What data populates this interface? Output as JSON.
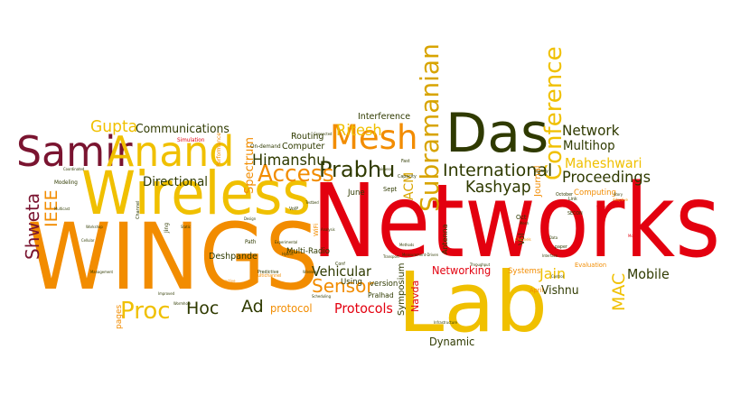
{
  "colors": {
    "red": "#e3000f",
    "orange": "#f28c00",
    "yellow": "#f0c000",
    "gold": "#d8a400",
    "olive": "#6b6b00",
    "darkolive": "#2f3a00",
    "maroon": "#7a1430",
    "brown": "#7b3f00"
  },
  "words": [
    {
      "text": "Networks",
      "color": "red"
    },
    {
      "text": "Lab",
      "color": "yellow"
    },
    {
      "text": "WINGS",
      "color": "orange"
    },
    {
      "text": "Wireless",
      "color": "yellow"
    },
    {
      "text": "Das",
      "color": "darkolive"
    },
    {
      "text": "Samir",
      "color": "maroon"
    },
    {
      "text": "Anand",
      "color": "yellow"
    },
    {
      "text": "Mesh",
      "color": "orange"
    },
    {
      "text": "Prabhu",
      "color": "darkolive"
    },
    {
      "text": "Subramanian",
      "color": "gold"
    },
    {
      "text": "Conference",
      "color": "yellow"
    },
    {
      "text": "International",
      "color": "darkolive"
    },
    {
      "text": "Access",
      "color": "orange"
    },
    {
      "text": "Himanshu",
      "color": "darkolive"
    },
    {
      "text": "Ritesh",
      "color": "yellow"
    },
    {
      "text": "Kashyap",
      "color": "darkolive"
    },
    {
      "text": "Proceedings",
      "color": "darkolive"
    },
    {
      "text": "Maheshwari",
      "color": "yellow"
    },
    {
      "text": "Network",
      "color": "darkolive"
    },
    {
      "text": "Multihop",
      "color": "darkolive"
    },
    {
      "text": "Shweta",
      "color": "maroon"
    },
    {
      "text": "IEEE",
      "color": "orange"
    },
    {
      "text": "Gupta",
      "color": "yellow"
    },
    {
      "text": "Communications",
      "color": "darkolive"
    },
    {
      "text": "Directional",
      "color": "darkolive"
    },
    {
      "text": "Proc",
      "color": "yellow"
    },
    {
      "text": "Hoc",
      "color": "darkolive"
    },
    {
      "text": "Ad",
      "color": "darkolive"
    },
    {
      "text": "Vehicular",
      "color": "darkolive"
    },
    {
      "text": "Sensor",
      "color": "orange"
    },
    {
      "text": "Protocols",
      "color": "red"
    },
    {
      "text": "protocol",
      "color": "orange"
    },
    {
      "text": "Networking",
      "color": "red"
    },
    {
      "text": "Jain",
      "color": "yellow"
    },
    {
      "text": "Vishnu",
      "color": "darkolive"
    },
    {
      "text": "MAC",
      "color": "yellow"
    },
    {
      "text": "Mobile",
      "color": "darkolive"
    },
    {
      "text": "Dynamic",
      "color": "darkolive"
    },
    {
      "text": "Navda",
      "color": "red"
    },
    {
      "text": "Symposium",
      "color": "darkolive"
    },
    {
      "text": "Interference",
      "color": "darkolive"
    },
    {
      "text": "Routing",
      "color": "darkolive"
    },
    {
      "text": "Computer",
      "color": "darkolive"
    },
    {
      "text": "Spectrum",
      "color": "orange"
    },
    {
      "text": "Deshpande",
      "color": "darkolive"
    },
    {
      "text": "Multi-Radio",
      "color": "darkolive"
    },
    {
      "text": "ACM",
      "color": "gold"
    },
    {
      "text": "June",
      "color": "darkolive"
    },
    {
      "text": "Computing",
      "color": "orange"
    },
    {
      "text": "Journal",
      "color": "orange"
    },
    {
      "text": "Vol",
      "color": "darkolive"
    },
    {
      "text": "Systems",
      "color": "orange"
    },
    {
      "text": "Evaluation",
      "color": "orange"
    },
    {
      "text": "pages",
      "color": "orange"
    },
    {
      "text": "version",
      "color": "darkolive"
    },
    {
      "text": "Pralhad",
      "color": "darkolive"
    },
    {
      "text": "Using",
      "color": "darkolive"
    },
    {
      "text": "Antenna",
      "color": "darkolive"
    },
    {
      "text": "Sept",
      "color": "darkolive"
    },
    {
      "text": "Oct",
      "color": "darkolive"
    },
    {
      "text": "April",
      "color": "orange"
    },
    {
      "text": "Simulation",
      "color": "red"
    },
    {
      "text": "Performance",
      "color": "orange"
    },
    {
      "text": "On-demand",
      "color": "darkolive"
    },
    {
      "text": "Modeling",
      "color": "darkolive"
    },
    {
      "text": "WiFi",
      "color": "orange"
    },
    {
      "text": "Path",
      "color": "darkolive"
    },
    {
      "text": "Predictive",
      "color": "darkolive"
    },
    {
      "text": "Multichannel",
      "color": "orange"
    },
    {
      "text": "Improved",
      "color": "darkolive"
    },
    {
      "text": "Wormhole",
      "color": "darkolive"
    },
    {
      "text": "Channel",
      "color": "darkolive"
    },
    {
      "text": "Link",
      "color": "darkolive"
    },
    {
      "text": "October",
      "color": "darkolive"
    },
    {
      "text": "Capacity",
      "color": "darkolive"
    },
    {
      "text": "Fast",
      "color": "darkolive"
    },
    {
      "text": "VoIP",
      "color": "darkolive"
    },
    {
      "text": "Coordinated",
      "color": "darkolive"
    },
    {
      "text": "Multicast",
      "color": "darkolive"
    },
    {
      "text": "SECON",
      "color": "darkolive"
    },
    {
      "text": "Methods",
      "color": "darkolive"
    },
    {
      "text": "Data",
      "color": "darkolive"
    },
    {
      "text": "paper",
      "color": "darkolive"
    },
    {
      "text": "Story",
      "color": "darkolive"
    },
    {
      "text": "Connected",
      "color": "darkolive"
    },
    {
      "text": "Jing",
      "color": "darkolive"
    },
    {
      "text": "Conf",
      "color": "darkolive"
    },
    {
      "text": "Experimental",
      "color": "darkolive"
    },
    {
      "text": "Mobile",
      "color": "red"
    },
    {
      "text": "Measurement-Driven",
      "color": "darkolive"
    },
    {
      "text": "Scheduling",
      "color": "darkolive"
    },
    {
      "text": "Interactive",
      "color": "orange"
    },
    {
      "text": "Channels",
      "color": "orange"
    },
    {
      "text": "Workshop",
      "color": "darkolive"
    },
    {
      "text": "Transport",
      "color": "darkolive"
    },
    {
      "text": "Wireless",
      "color": "darkolive"
    },
    {
      "text": "Fairness",
      "color": "darkolive"
    },
    {
      "text": "Interface",
      "color": "darkolive"
    },
    {
      "text": "Throughput",
      "color": "darkolive"
    },
    {
      "text": "Infrastructure",
      "color": "darkolive"
    },
    {
      "text": "Adaptive",
      "color": "orange"
    },
    {
      "text": "Mesh",
      "color": "darkolive"
    },
    {
      "text": "Static",
      "color": "darkolive"
    },
    {
      "text": "Design",
      "color": "darkolive"
    },
    {
      "text": "Testbed",
      "color": "darkolive"
    },
    {
      "text": "Analysis",
      "color": "darkolive"
    },
    {
      "text": "Topology",
      "color": "darkolive"
    },
    {
      "text": "Management",
      "color": "darkolive"
    },
    {
      "text": "Security",
      "color": "red"
    },
    {
      "text": "Hybrid",
      "color": "darkolive"
    },
    {
      "text": "Cellular",
      "color": "darkolive"
    },
    {
      "text": "Control",
      "color": "darkolive"
    }
  ]
}
